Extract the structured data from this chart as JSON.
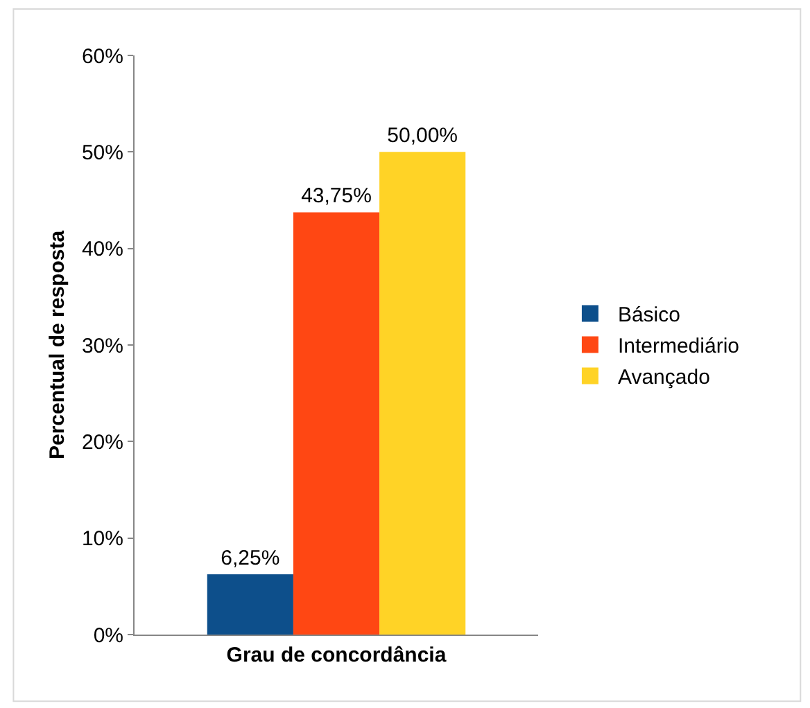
{
  "chart_data": {
    "type": "bar",
    "xlabel": "Grau de concordância",
    "ylabel": "Percentual de resposta",
    "categories": [
      null
    ],
    "series": [
      {
        "name": "Básico",
        "color": "#0d4f8b",
        "values": [
          6.25
        ],
        "value_labels": [
          "6,25%"
        ]
      },
      {
        "name": "Intermediário",
        "color": "#ff4713",
        "values": [
          43.75
        ],
        "value_labels": [
          "43,75%"
        ]
      },
      {
        "name": "Avançado",
        "color": "#ffd326",
        "values": [
          50.0
        ],
        "value_labels": [
          "50,00%"
        ]
      }
    ],
    "ylim": [
      0,
      60
    ],
    "yticks": [
      {
        "value": 0,
        "label": "0%"
      },
      {
        "value": 10,
        "label": "10%"
      },
      {
        "value": 20,
        "label": "20%"
      },
      {
        "value": 30,
        "label": "30%"
      },
      {
        "value": 40,
        "label": "40%"
      },
      {
        "value": 50,
        "label": "50%"
      },
      {
        "value": 60,
        "label": "60%"
      }
    ],
    "legend": "right"
  }
}
